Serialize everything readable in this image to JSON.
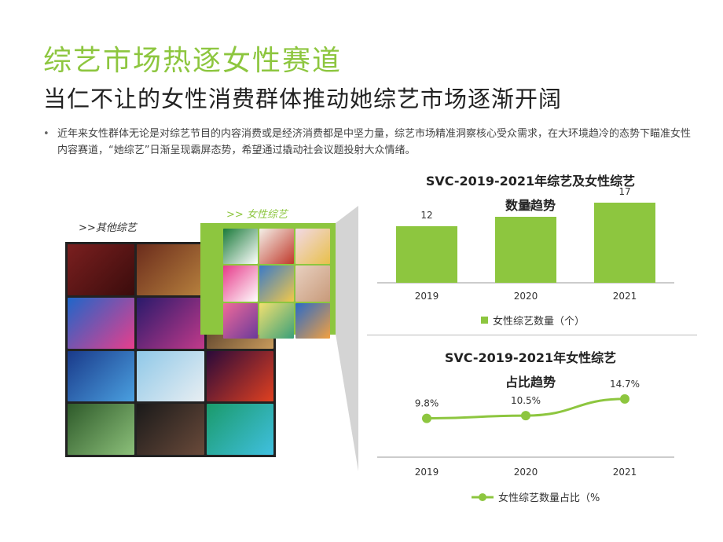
{
  "slide": {
    "title": "综艺市场热逐女性赛道",
    "subtitle": "当仁不让的女性消费群体推动她综艺市场逐渐开阔",
    "bullet": "近年来女性群体无论是对综艺节目的内容消费或是经济消费都是中坚力量，综艺市场精准洞察核心受众需求，在大环境趋冷的态势下瞄准女性内容赛道，“她综艺”日渐呈现霸屏态势，希望通过撬动社会议题投射大众情绪。",
    "label_other": ">>其他综艺",
    "label_female": ">> 女性综艺"
  },
  "colors": {
    "accent": "#8dc63f",
    "text": "#333333"
  },
  "chart_data": [
    {
      "type": "bar",
      "title": "SVC-2019-2021年综艺及女性综艺数量趋势",
      "title_lines": [
        "SVC-2019-2021年综艺及女性综艺",
        "数量趋势"
      ],
      "categories": [
        "2019",
        "2020",
        "2021"
      ],
      "series": [
        {
          "name": "女性综艺数量（个）",
          "values": [
            12,
            14,
            17
          ]
        }
      ],
      "ylim": [
        0,
        20
      ],
      "color": "#8dc63f",
      "legend": "bottom"
    },
    {
      "type": "line",
      "title": "SVC-2019-2021年女性综艺占比趋势",
      "title_lines": [
        "SVC-2019-2021年女性综艺",
        "占比趋势"
      ],
      "categories": [
        "2019",
        "2020",
        "2021"
      ],
      "series": [
        {
          "name": "女性综艺数量占比（%",
          "values": [
            9.8,
            10.5,
            14.7
          ]
        }
      ],
      "value_labels": [
        "9.8%",
        "10.5%",
        "14.7%"
      ],
      "ylim": [
        0,
        25
      ],
      "color": "#8dc63f",
      "legend": "bottom"
    }
  ]
}
